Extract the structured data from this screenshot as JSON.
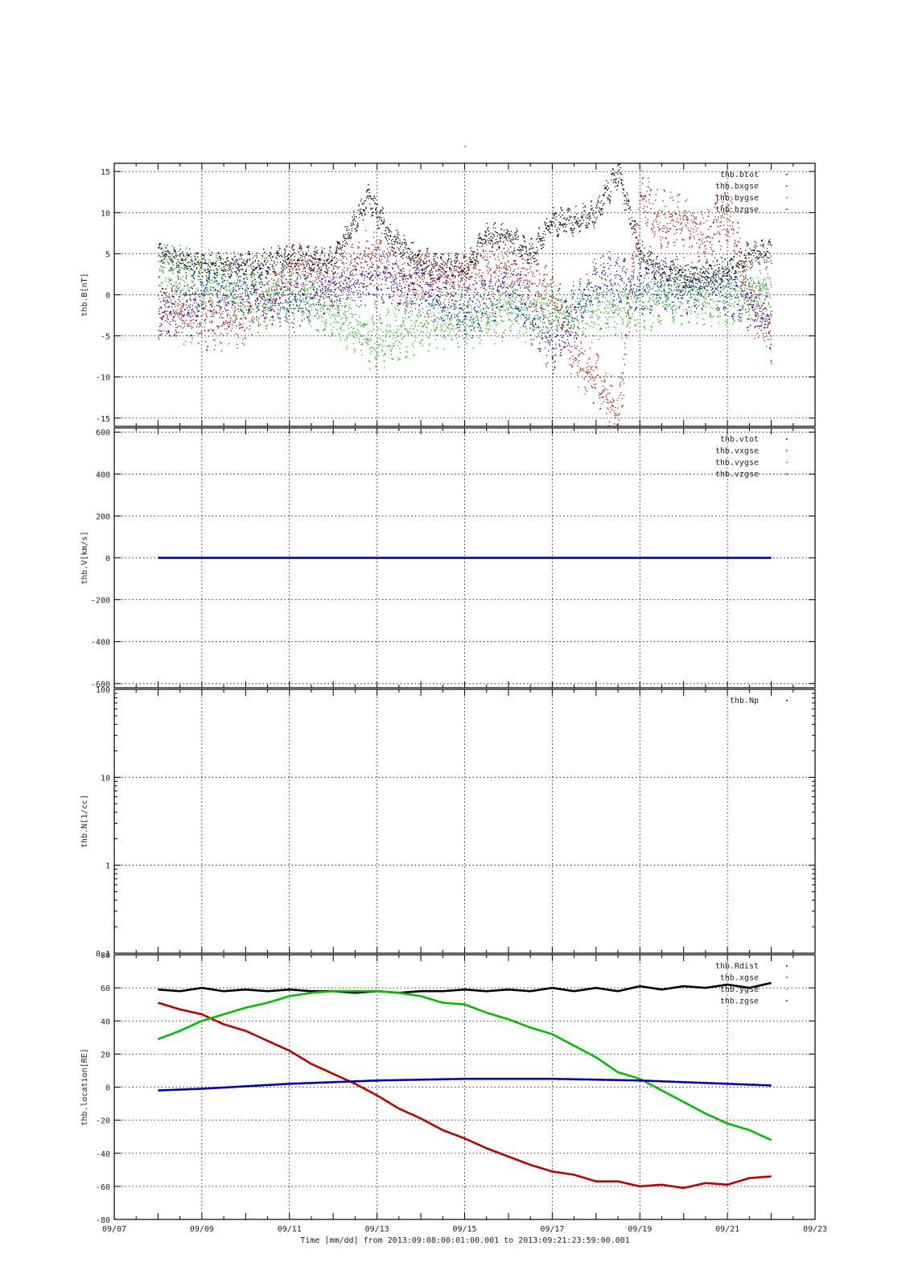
{
  "figure": {
    "title": "-",
    "xlabel": "Time [mm/dd]  from 2013:09:08:00:01:00.001  to  2013:09:21:23:59:00.001",
    "x_tick_labels": [
      "09/07",
      "09/09",
      "09/11",
      "09/13",
      "09/15",
      "09/17",
      "09/19",
      "09/21",
      "09/23"
    ]
  },
  "chart_data": [
    {
      "type": "scatter",
      "ylabel": "thb.B[nT]",
      "ylim": [
        -16,
        16
      ],
      "yticks": [
        -15,
        -10,
        -5,
        0,
        5,
        10,
        15
      ],
      "yscale": "linear",
      "grid": true,
      "legend_position": "top-right",
      "x_domain": [
        "09/07",
        "09/23"
      ],
      "x_data_range": [
        "09/08 00:01",
        "09/21 23:59"
      ],
      "series": [
        {
          "name": "thb.btot",
          "color": "#000000",
          "x": [
            "09/08",
            "09/09",
            "09/10",
            "09/11",
            "09/12",
            "09/12.8",
            "09/13.3",
            "09/14",
            "09/15",
            "09/15.5",
            "09/16",
            "09/16.5",
            "09/17",
            "09/17.5",
            "09/18",
            "09/18.5",
            "09/19",
            "09/19.5",
            "09/20",
            "09/20.5",
            "09/21",
            "09/21.5",
            "09/22"
          ],
          "values": [
            5,
            3.5,
            3.5,
            4.5,
            4,
            12,
            7,
            4,
            3,
            7,
            7,
            5,
            9,
            9,
            10,
            15,
            5,
            3,
            2,
            2,
            3,
            5,
            5
          ]
        },
        {
          "name": "thb.bxgse",
          "color": "#c00000",
          "x": [
            "09/08",
            "09/08.5",
            "09/09",
            "09/10",
            "09/11",
            "09/12",
            "09/13",
            "09/13.5",
            "09/14",
            "09/15",
            "09/15.5",
            "09/16",
            "09/16.5",
            "09/17",
            "09/17.5",
            "09/18",
            "09/18.5",
            "09/19",
            "09/19.5",
            "09/20",
            "09/20.5",
            "09/21",
            "09/21.5",
            "09/22"
          ],
          "values": [
            -1,
            -2.5,
            -3,
            -3,
            3,
            2,
            5,
            2,
            2,
            2,
            4,
            3,
            2,
            0,
            -7,
            -10,
            -15,
            12,
            9,
            9,
            7,
            10,
            0,
            -5
          ]
        },
        {
          "name": "thb.bygse",
          "color": "#00c000",
          "x": [
            "09/08",
            "09/09",
            "09/10",
            "09/11",
            "09/12",
            "09/13",
            "09/14",
            "09/15",
            "09/16",
            "09/17",
            "09/18",
            "09/19",
            "09/20",
            "09/21",
            "09/22"
          ],
          "values": [
            3,
            2,
            0,
            0,
            -2,
            -6,
            -3,
            -3,
            -2,
            -2,
            -2,
            -1,
            0,
            0,
            1
          ]
        },
        {
          "name": "thb.bzgse",
          "color": "#0000c0",
          "x": [
            "09/08",
            "09/09",
            "09/10",
            "09/11",
            "09/12",
            "09/13",
            "09/14",
            "09/15",
            "09/16",
            "09/17",
            "09/18",
            "09/19",
            "09/20",
            "09/21",
            "09/22"
          ],
          "values": [
            -2,
            0,
            1,
            -1,
            1,
            2,
            1,
            -2,
            1,
            -6,
            2,
            1,
            1,
            1,
            -3
          ]
        }
      ]
    },
    {
      "type": "scatter",
      "ylabel": "thb.V[km/s]",
      "ylim": [
        -620,
        620
      ],
      "yticks": [
        -600,
        -400,
        -200,
        0,
        200,
        400,
        600
      ],
      "yscale": "linear",
      "grid": true,
      "legend_position": "top-right",
      "series": [
        {
          "name": "thb.vtot",
          "color": "#000000",
          "x": [
            "09/08",
            "09/22"
          ],
          "values": [
            0,
            0
          ]
        },
        {
          "name": "thb.vxgse",
          "color": "#c00000",
          "x": [
            "09/08",
            "09/22"
          ],
          "values": [
            0,
            0
          ]
        },
        {
          "name": "thb.vygse",
          "color": "#00c000",
          "x": [
            "09/08",
            "09/22"
          ],
          "values": [
            0,
            0
          ]
        },
        {
          "name": "thb.vzgse",
          "color": "#0000c0",
          "x": [
            "09/08",
            "09/22"
          ],
          "values": [
            0,
            0
          ]
        }
      ]
    },
    {
      "type": "scatter",
      "ylabel": "thb.N[1/cc]",
      "ylim": [
        0.1,
        100
      ],
      "yticks": [
        "0.1",
        "1",
        "10",
        "100"
      ],
      "yscale": "log",
      "grid": true,
      "legend_position": "top-right",
      "series": [
        {
          "name": "thb.Np",
          "color": "#000000",
          "x": [],
          "values": []
        }
      ]
    },
    {
      "type": "line",
      "ylabel": "thb.location[RE]",
      "ylim": [
        -80,
        80
      ],
      "yticks": [
        -80,
        -60,
        -40,
        -20,
        0,
        20,
        40,
        60,
        80
      ],
      "yscale": "linear",
      "grid": true,
      "legend_position": "top-right",
      "series": [
        {
          "name": "thb.Rdist",
          "color": "#000000",
          "x": [
            "09/08",
            "09/08.5",
            "09/09",
            "09/09.5",
            "09/10",
            "09/10.5",
            "09/11",
            "09/11.5",
            "09/12",
            "09/12.5",
            "09/13",
            "09/13.5",
            "09/14",
            "09/14.5",
            "09/15",
            "09/15.5",
            "09/16",
            "09/16.5",
            "09/17",
            "09/17.5",
            "09/18",
            "09/18.5",
            "09/19",
            "09/19.5",
            "09/20",
            "09/20.5",
            "09/21",
            "09/21.5",
            "09/22"
          ],
          "values": [
            59,
            58,
            60,
            58,
            59,
            58,
            59,
            58,
            58,
            57,
            58,
            57,
            58,
            58,
            59,
            58,
            59,
            58,
            60,
            58,
            60,
            58,
            61,
            59,
            61,
            60,
            62,
            60,
            63
          ]
        },
        {
          "name": "thb.xgse",
          "color": "#c00000",
          "x": [
            "09/08",
            "09/08.5",
            "09/09",
            "09/09.5",
            "09/10",
            "09/10.5",
            "09/11",
            "09/11.5",
            "09/12",
            "09/12.5",
            "09/13",
            "09/13.5",
            "09/14",
            "09/14.5",
            "09/15",
            "09/15.5",
            "09/16",
            "09/16.5",
            "09/17",
            "09/17.5",
            "09/18",
            "09/18.5",
            "09/19",
            "09/19.5",
            "09/20",
            "09/20.5",
            "09/21",
            "09/21.5",
            "09/22"
          ],
          "values": [
            51,
            47,
            44,
            38,
            34,
            28,
            22,
            14,
            8,
            2,
            -5,
            -13,
            -19,
            -26,
            -31,
            -37,
            -42,
            -47,
            -51,
            -53,
            -57,
            -57,
            -60,
            -59,
            -61,
            -58,
            -59,
            -55,
            -54
          ]
        },
        {
          "name": "thb.ygse",
          "color": "#00c000",
          "x": [
            "09/08",
            "09/08.5",
            "09/09",
            "09/09.5",
            "09/10",
            "09/10.5",
            "09/11",
            "09/11.5",
            "09/12",
            "09/12.5",
            "09/13",
            "09/13.5",
            "09/14",
            "09/14.5",
            "09/15",
            "09/15.5",
            "09/16",
            "09/16.5",
            "09/17",
            "09/17.5",
            "09/18",
            "09/18.5",
            "09/19",
            "09/19.5",
            "09/20",
            "09/20.5",
            "09/21",
            "09/21.5",
            "09/22"
          ],
          "values": [
            29,
            34,
            40,
            44,
            48,
            51,
            55,
            57,
            58,
            58,
            58,
            57,
            55,
            51,
            50,
            45,
            41,
            36,
            32,
            25,
            18,
            9,
            5,
            -2,
            -9,
            -16,
            -22,
            -26,
            -32
          ]
        },
        {
          "name": "thb.zgse",
          "color": "#0000c0",
          "x": [
            "09/08",
            "09/09",
            "09/10",
            "09/11",
            "09/12",
            "09/13",
            "09/14",
            "09/15",
            "09/16",
            "09/17",
            "09/18",
            "09/19",
            "09/20",
            "09/21",
            "09/22"
          ],
          "values": [
            -2,
            -1,
            0.5,
            2,
            3,
            4,
            4.5,
            5,
            5,
            5,
            4.5,
            4,
            3,
            2,
            1
          ]
        }
      ]
    }
  ]
}
